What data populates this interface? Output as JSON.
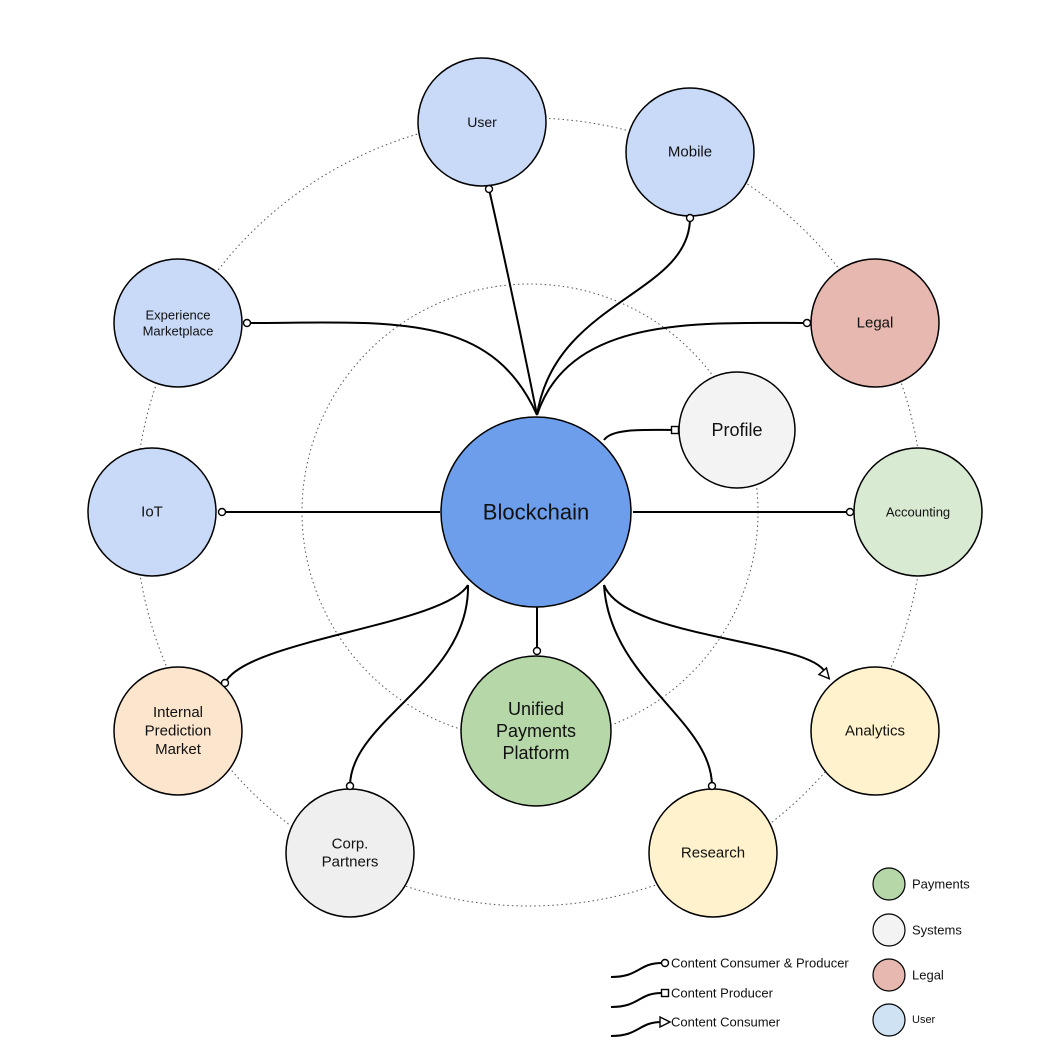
{
  "nodes": [
    {
      "id": "blockchain",
      "lines": [
        "Blockchain"
      ],
      "color": "#6d9eeb"
    },
    {
      "id": "user",
      "lines": [
        "User"
      ],
      "color": "#c9daf8"
    },
    {
      "id": "mobile",
      "lines": [
        "Mobile"
      ],
      "color": "#c9daf8"
    },
    {
      "id": "legal",
      "lines": [
        "Legal"
      ],
      "color": "#e6b8af"
    },
    {
      "id": "experience-marketplace",
      "lines": [
        "Experience",
        "Marketplace"
      ],
      "color": "#c9daf8"
    },
    {
      "id": "profile",
      "lines": [
        "Profile"
      ],
      "color": "#f3f3f3"
    },
    {
      "id": "iot",
      "lines": [
        "IoT"
      ],
      "color": "#c9daf8"
    },
    {
      "id": "accounting",
      "lines": [
        "Accounting"
      ],
      "color": "#d9ead3"
    },
    {
      "id": "internal-prediction-market",
      "lines": [
        "Internal",
        "Prediction",
        "Market"
      ],
      "color": "#fce5cd"
    },
    {
      "id": "unified-payments-platform",
      "lines": [
        "Unified",
        "Payments",
        "Platform"
      ],
      "color": "#b6d7a8"
    },
    {
      "id": "analytics",
      "lines": [
        "Analytics"
      ],
      "color": "#fff2cc"
    },
    {
      "id": "corp-partners",
      "lines": [
        "Corp.",
        "Partners"
      ],
      "color": "#efefef"
    },
    {
      "id": "research",
      "lines": [
        "Research"
      ],
      "color": "#fff2cc"
    }
  ],
  "connections": [
    {
      "to": "user",
      "type": "consumer-producer"
    },
    {
      "to": "mobile",
      "type": "consumer-producer"
    },
    {
      "to": "experience-marketplace",
      "type": "consumer-producer"
    },
    {
      "to": "legal",
      "type": "consumer-producer"
    },
    {
      "to": "profile",
      "type": "producer"
    },
    {
      "to": "iot",
      "type": "consumer-producer"
    },
    {
      "to": "accounting",
      "type": "consumer-producer"
    },
    {
      "to": "internal-prediction-market",
      "type": "consumer-producer"
    },
    {
      "to": "corp-partners",
      "type": "consumer-producer"
    },
    {
      "to": "unified-payments-platform",
      "type": "consumer-producer"
    },
    {
      "to": "research",
      "type": "consumer-producer"
    },
    {
      "to": "analytics",
      "type": "consumer"
    }
  ],
  "legend": {
    "lines": [
      {
        "type": "consumer-producer",
        "label": "Content Consumer & Producer"
      },
      {
        "type": "producer",
        "label": "Content Producer"
      },
      {
        "type": "consumer",
        "label": "Content Consumer"
      }
    ],
    "colors": [
      {
        "label": "Payments",
        "color": "#b6d7a8"
      },
      {
        "label": "Systems",
        "color": "#f3f3f3"
      },
      {
        "label": "Legal",
        "color": "#e6b8af"
      },
      {
        "label": "User",
        "color": "#cfe2f3"
      }
    ]
  }
}
